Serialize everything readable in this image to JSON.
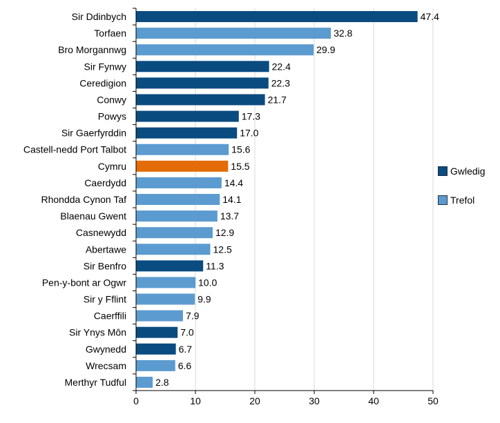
{
  "chart_data": {
    "type": "bar",
    "orientation": "horizontal",
    "categories": [
      "Sir Ddinbych",
      "Torfaen",
      "Bro Morgannwg",
      "Sir Fynwy",
      "Ceredigion",
      "Conwy",
      "Powys",
      "Sir Gaerfyrddin",
      "Castell-nedd Port Talbot",
      "Cymru",
      "Caerdydd",
      "Rhondda Cynon Taf",
      "Blaenau Gwent",
      "Casnewydd",
      "Abertawe",
      "Sir Benfro",
      "Pen-y-bont ar Ogwr",
      "Sir y Fflint",
      "Caerffili",
      "Sir Ynys Môn",
      "Gwynedd",
      "Wrecsam",
      "Merthyr Tudful"
    ],
    "values": [
      47.4,
      32.8,
      29.9,
      22.4,
      22.3,
      21.7,
      17.3,
      17.0,
      15.6,
      15.5,
      14.4,
      14.1,
      13.7,
      12.9,
      12.5,
      11.3,
      10.0,
      9.9,
      7.9,
      7.0,
      6.7,
      6.6,
      2.8
    ],
    "value_labels": [
      "47.4",
      "32.8",
      "29.9",
      "22.4",
      "22.3",
      "21.7",
      "17.3",
      "17.0",
      "15.6",
      "15.5",
      "14.4",
      "14.1",
      "13.7",
      "12.9",
      "12.5",
      "11.3",
      "10.0",
      "9.9",
      "7.9",
      "7.0",
      "6.7",
      "6.6",
      "2.8"
    ],
    "groups": [
      "Gwledig",
      "Trefol",
      "Trefol",
      "Gwledig",
      "Gwledig",
      "Gwledig",
      "Gwledig",
      "Gwledig",
      "Trefol",
      "Cymru",
      "Trefol",
      "Trefol",
      "Trefol",
      "Trefol",
      "Trefol",
      "Gwledig",
      "Trefol",
      "Trefol",
      "Trefol",
      "Gwledig",
      "Gwledig",
      "Trefol",
      "Trefol"
    ],
    "colors": {
      "Gwledig": "#0a4b80",
      "Trefol": "#5b9bcf",
      "Cymru": "#e36c09"
    },
    "legend": [
      {
        "label": "Gwledig",
        "color": "#0a4b80"
      },
      {
        "label": "Trefol",
        "color": "#5b9bcf"
      }
    ],
    "legend_position": "right",
    "xlim": [
      0,
      50
    ],
    "xticks": [
      "0",
      "10",
      "20",
      "30",
      "40",
      "50"
    ],
    "xtick_values": [
      0,
      10,
      20,
      30,
      40,
      50
    ],
    "grid": true,
    "title": "",
    "xlabel": "",
    "ylabel": ""
  }
}
